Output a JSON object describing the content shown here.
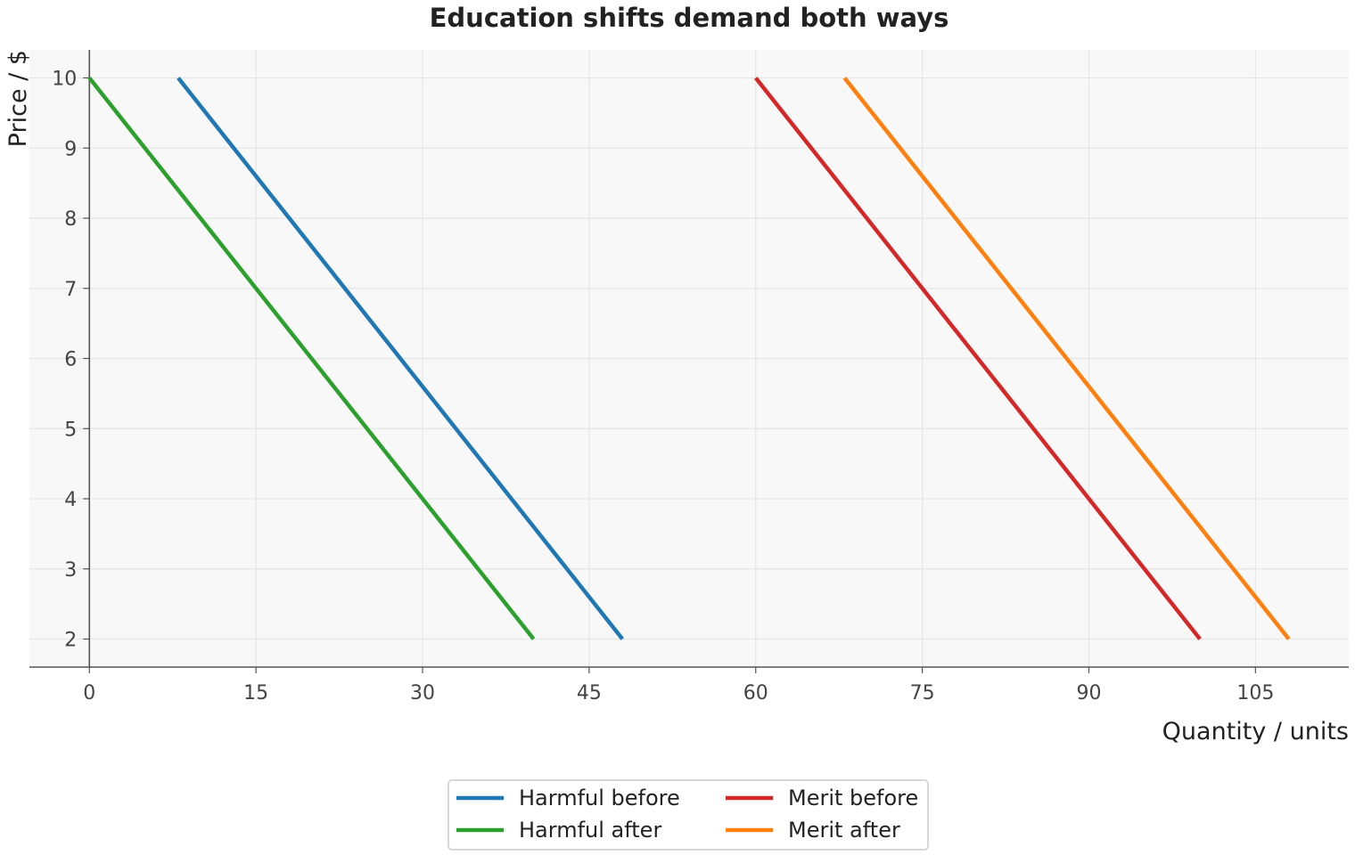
{
  "chart_data": {
    "type": "line",
    "title": "Education shifts demand both ways",
    "xlabel": "Quantity / units",
    "ylabel": "Price / $",
    "xlim": [
      -5.4,
      113.4
    ],
    "ylim": [
      1.6,
      10.4
    ],
    "xticks": [
      0,
      15,
      30,
      45,
      60,
      75,
      90,
      105
    ],
    "yticks": [
      2,
      3,
      4,
      5,
      6,
      7,
      8,
      9,
      10
    ],
    "grid": true,
    "legend_position": "bottom-center",
    "series": [
      {
        "name": "Harmful before",
        "color": "#1f77b4",
        "points": [
          [
            8,
            10
          ],
          [
            48,
            2
          ]
        ]
      },
      {
        "name": "Harmful after",
        "color": "#2ca02c",
        "points": [
          [
            0,
            10
          ],
          [
            40,
            2
          ]
        ]
      },
      {
        "name": "Merit before",
        "color": "#d62728",
        "points": [
          [
            60,
            10
          ],
          [
            100,
            2
          ]
        ]
      },
      {
        "name": "Merit after",
        "color": "#ff7f0e",
        "points": [
          [
            68,
            10
          ],
          [
            108,
            2
          ]
        ]
      }
    ]
  }
}
